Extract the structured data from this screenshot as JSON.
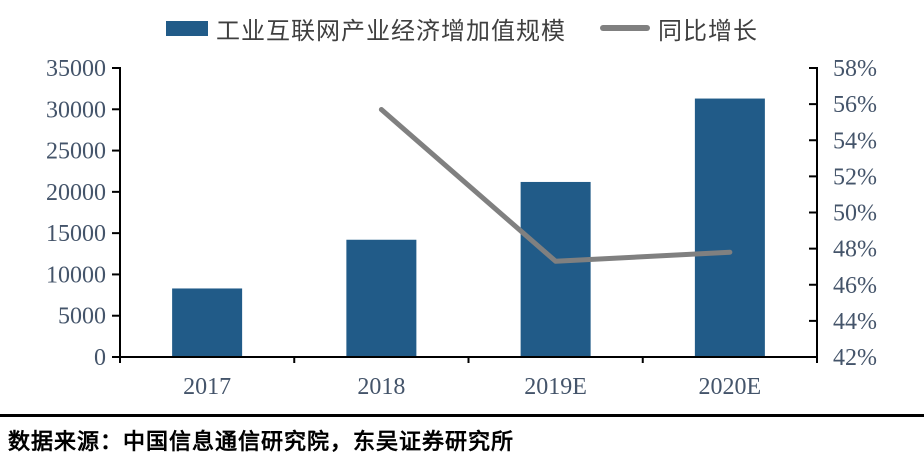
{
  "legend": {
    "bar_label": "工业互联网产业经济增加值规模",
    "line_label": "同比增长"
  },
  "footer": {
    "source": "数据来源：中国信息通信研究院，东吴证券研究所"
  },
  "colors": {
    "bar": "#215b88",
    "line": "#808080",
    "axis": "#000000",
    "tick_label": "#44546a",
    "legend_text": "#3f3f3f"
  },
  "chart_data": {
    "type": "bar",
    "subtype": "bar+line combo",
    "categories": [
      "2017",
      "2018",
      "2019E",
      "2020E"
    ],
    "series": [
      {
        "name": "工业互联网产业经济增加值规模",
        "type": "bar",
        "axis": "left",
        "values": [
          8300,
          14200,
          21200,
          31300
        ]
      },
      {
        "name": "同比增长",
        "type": "line",
        "axis": "right",
        "unit": "%",
        "values": [
          null,
          55.7,
          47.3,
          47.8
        ]
      }
    ],
    "left_axis": {
      "min": 0,
      "max": 35000,
      "step": 5000,
      "ticks": [
        "0",
        "5000",
        "10000",
        "15000",
        "20000",
        "25000",
        "30000",
        "35000"
      ]
    },
    "right_axis": {
      "min": 42,
      "max": 58,
      "step": 2,
      "ticks": [
        "42%",
        "44%",
        "46%",
        "48%",
        "50%",
        "52%",
        "54%",
        "56%",
        "58%"
      ]
    },
    "grid": false,
    "legend_position": "top"
  }
}
